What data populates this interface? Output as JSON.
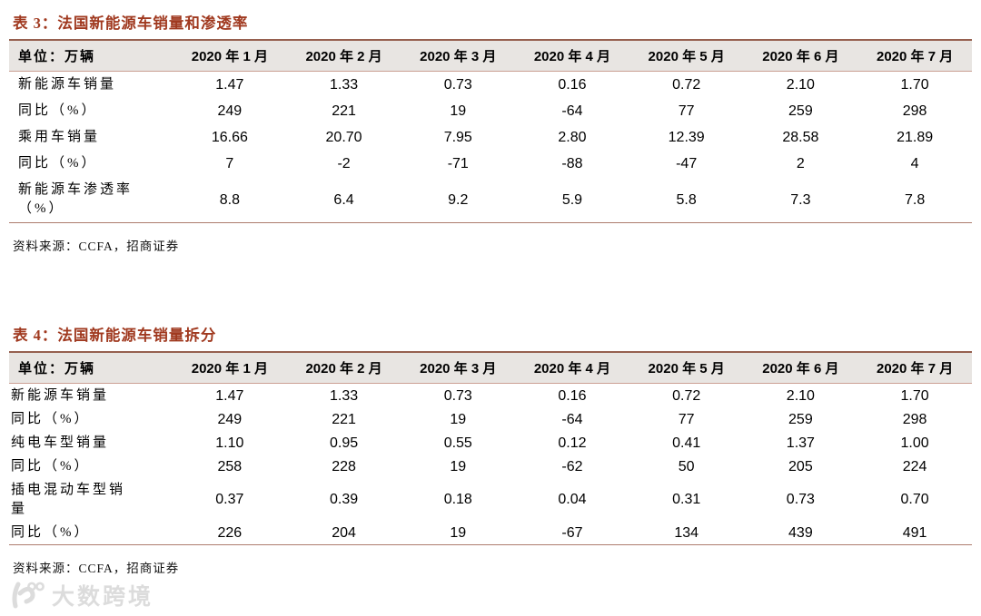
{
  "colors": {
    "title_accent": "#A0391F",
    "header_background": "#E8E5E2",
    "rule_dark": "#96604F",
    "rule_light": "#CBA094",
    "rule_bottom": "#AD7C6E",
    "watermark_gray": "#DCDCDC"
  },
  "tables": [
    {
      "title": "表 3：法国新能源车销量和渗透率",
      "unit_label": "单位：万辆",
      "columns": [
        "2020 年 1 月",
        "2020 年 2 月",
        "2020 年 3 月",
        "2020 年 4 月",
        "2020 年 5 月",
        "2020 年 6 月",
        "2020 年 7 月"
      ],
      "rows": [
        {
          "label": "新能源车销量",
          "values": [
            "1.47",
            "1.33",
            "0.73",
            "0.16",
            "0.72",
            "2.10",
            "1.70"
          ]
        },
        {
          "label": "同比（%）",
          "values": [
            "249",
            "221",
            "19",
            "-64",
            "77",
            "259",
            "298"
          ]
        },
        {
          "label": "乘用车销量",
          "values": [
            "16.66",
            "20.70",
            "7.95",
            "2.80",
            "12.39",
            "28.58",
            "21.89"
          ]
        },
        {
          "label": "同比（%）",
          "values": [
            "7",
            "-2",
            "-71",
            "-88",
            "-47",
            "2",
            "4"
          ]
        },
        {
          "label": "新能源车渗透率\n（%）",
          "values": [
            "8.8",
            "6.4",
            "9.2",
            "5.9",
            "5.8",
            "7.3",
            "7.8"
          ]
        }
      ],
      "source": "资料来源：CCFA，招商证券"
    },
    {
      "title": "表 4：法国新能源车销量拆分",
      "unit_label": "单位：万辆",
      "columns": [
        "2020 年 1 月",
        "2020 年 2 月",
        "2020 年 3 月",
        "2020 年 4 月",
        "2020 年 5 月",
        "2020 年 6 月",
        "2020 年 7 月"
      ],
      "rows": [
        {
          "label": "新能源车销量",
          "values": [
            "1.47",
            "1.33",
            "0.73",
            "0.16",
            "0.72",
            "2.10",
            "1.70"
          ]
        },
        {
          "label": "同比（%）",
          "values": [
            "249",
            "221",
            "19",
            "-64",
            "77",
            "259",
            "298"
          ]
        },
        {
          "label": "纯电车型销量",
          "values": [
            "1.10",
            "0.95",
            "0.55",
            "0.12",
            "0.41",
            "1.37",
            "1.00"
          ]
        },
        {
          "label": "同比（%）",
          "values": [
            "258",
            "228",
            "19",
            "-62",
            "50",
            "205",
            "224"
          ]
        },
        {
          "label": "插电混动车型销\n量",
          "values": [
            "0.37",
            "0.39",
            "0.18",
            "0.04",
            "0.31",
            "0.73",
            "0.70"
          ]
        },
        {
          "label": "同比（%）",
          "values": [
            "226",
            "204",
            "19",
            "-67",
            "134",
            "439",
            "491"
          ]
        }
      ],
      "source": "资料来源：CCFA，招商证券"
    }
  ],
  "watermark": {
    "text": "大数跨境"
  }
}
